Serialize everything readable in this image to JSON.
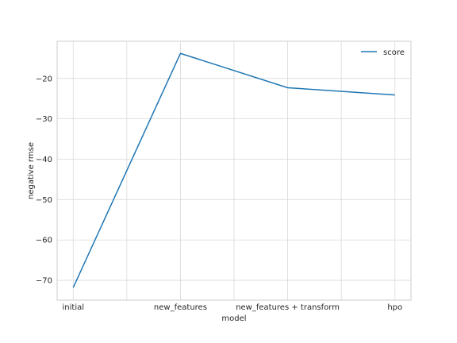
{
  "chart_data": {
    "type": "line",
    "categories": [
      "initial",
      "",
      "new_features",
      "",
      "new_features + transform",
      "",
      "hpo"
    ],
    "x_positions": [
      0,
      1,
      2,
      3,
      4,
      5,
      6
    ],
    "series": [
      {
        "name": "score",
        "color": "#1f77b4",
        "x": [
          0,
          2,
          4,
          6
        ],
        "values": [
          -71.8,
          -13.8,
          -22.3,
          -24.1
        ]
      }
    ],
    "xlabel": "model",
    "ylabel": "negative rmse",
    "xlim": [
      -0.3,
      6.3
    ],
    "ylim": [
      -74.9,
      -10.8
    ],
    "yticks": [
      -70,
      -60,
      -50,
      -40,
      -30,
      -20
    ],
    "grid": true,
    "legend": "top-right"
  }
}
